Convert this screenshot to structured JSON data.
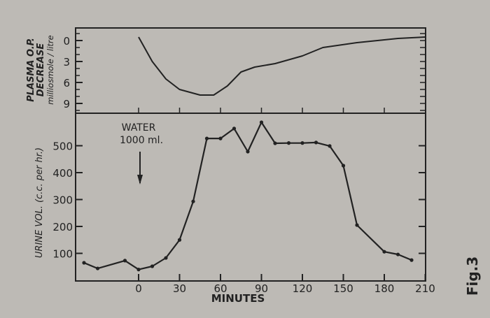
{
  "figure_label": "Fig.3",
  "chart_data": [
    {
      "type": "line",
      "title": "",
      "ylabel_lines": [
        "PLASMA O.P.",
        "DECREASE",
        "milliosmole / litre"
      ],
      "xlabel": "",
      "yticks": [
        0,
        3,
        6,
        9
      ],
      "ylim": [
        -1.5,
        10
      ],
      "y_inverted": true,
      "xlim": [
        -50,
        210
      ],
      "x": [
        0,
        10,
        20,
        30,
        45,
        55,
        65,
        75,
        85,
        100,
        120,
        135,
        160,
        190,
        210
      ],
      "values": [
        -0.5,
        3,
        5.5,
        7,
        7.8,
        7.8,
        6.5,
        4.5,
        3.8,
        3.3,
        2.2,
        1,
        0.3,
        -0.3,
        -0.5
      ]
    },
    {
      "type": "line",
      "title": "",
      "ylabel": "URINE VOL. (c.c. per hr.)",
      "xlabel": "MINUTES",
      "xticks": [
        0,
        30,
        60,
        90,
        120,
        150,
        180,
        210
      ],
      "yticks": [
        100,
        200,
        300,
        400,
        500
      ],
      "xlim": [
        -50,
        210
      ],
      "ylim": [
        0,
        640
      ],
      "annotation": {
        "line1": "WATER",
        "line2": "1000 ml.",
        "at_minute": 0
      },
      "x": [
        -40,
        -30,
        -10,
        0,
        10,
        20,
        30,
        40,
        50,
        60,
        70,
        80,
        90,
        100,
        110,
        120,
        130,
        140,
        150,
        160,
        180,
        190,
        200
      ],
      "values": [
        65,
        44,
        73,
        40,
        52,
        83,
        150,
        293,
        527,
        527,
        564,
        478,
        587,
        509,
        510,
        510,
        512,
        499,
        426,
        205,
        106,
        96,
        75
      ]
    }
  ]
}
